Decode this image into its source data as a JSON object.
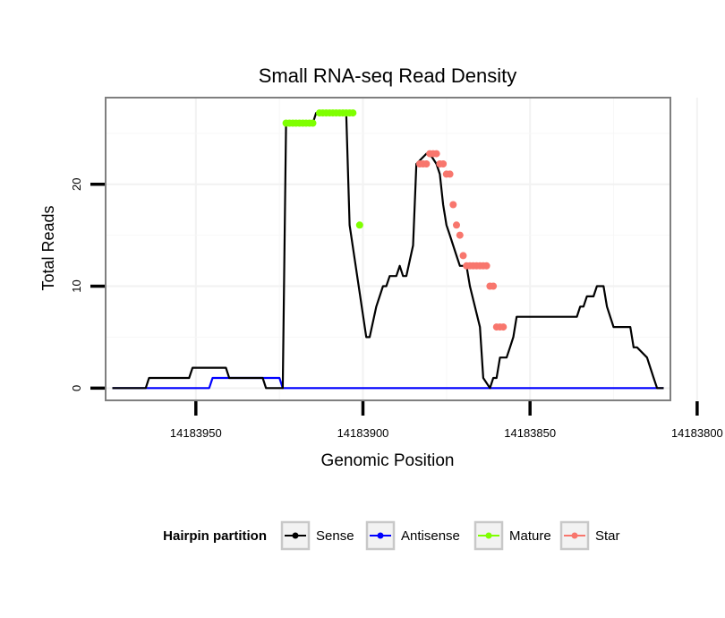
{
  "chart_data": {
    "type": "line",
    "title": "Small RNA-seq Read Density",
    "xlabel": "Genomic Position",
    "ylabel": "Total Reads",
    "x_reversed": true,
    "xlim": [
      14183977,
      14183808
    ],
    "ylim": [
      -1.2,
      28.5
    ],
    "x_ticks": [
      14183950,
      14183900,
      14183850,
      14183800
    ],
    "x_tick_labels": [
      "14183950",
      "14183900",
      "14183850",
      "14183800"
    ],
    "y_ticks": [
      0,
      10,
      20
    ],
    "y_tick_labels": [
      "0",
      "10",
      "20"
    ],
    "grid": true,
    "legend": {
      "title": "Hairpin partition",
      "position": "bottom",
      "entries": [
        {
          "name": "Sense",
          "color": "#000000"
        },
        {
          "name": "Antisense",
          "color": "#0000ff"
        },
        {
          "name": "Mature",
          "color": "#7fff00"
        },
        {
          "name": "Star",
          "color": "#f8766d"
        }
      ]
    },
    "series": [
      {
        "name": "Sense",
        "color": "#000000",
        "x": [
          14183975,
          14183965,
          14183964,
          14183952,
          14183951,
          14183941,
          14183940,
          14183930,
          14183929,
          14183924,
          14183923,
          14183915,
          14183914,
          14183905,
          14183904,
          14183899,
          14183898,
          14183896,
          14183894,
          14183893,
          14183892,
          14183890,
          14183889,
          14183888,
          14183887,
          14183885,
          14183884,
          14183881,
          14183880,
          14183878,
          14183877,
          14183876,
          14183875,
          14183874,
          14183872,
          14183871,
          14183869,
          14183868,
          14183865,
          14183864,
          14183862,
          14183861,
          14183860,
          14183859,
          14183857,
          14183856,
          14183855,
          14183854,
          14183852,
          14183851,
          14183850,
          14183849,
          14183848,
          14183847,
          14183846,
          14183836,
          14183835,
          14183834,
          14183833,
          14183831,
          14183830,
          14183828,
          14183827,
          14183825,
          14183824,
          14183820,
          14183819,
          14183818,
          14183815,
          14183814,
          14183813,
          14183812,
          14183810
        ],
        "values": [
          0,
          0,
          1,
          1,
          2,
          2,
          1,
          1,
          0,
          0,
          26,
          26,
          27,
          27,
          16,
          5,
          5,
          8,
          10,
          10,
          11,
          11,
          12,
          11,
          11,
          14,
          22,
          23,
          23,
          22,
          21,
          18,
          16,
          15,
          13,
          12,
          12,
          10,
          6,
          1,
          0,
          1,
          1,
          3,
          3,
          4,
          5,
          7,
          7,
          7,
          7,
          7,
          7,
          7,
          7,
          7,
          8,
          8,
          9,
          9,
          10,
          10,
          8,
          6,
          6,
          6,
          4,
          4,
          3,
          2,
          1,
          0,
          0
        ]
      },
      {
        "name": "Antisense",
        "color": "#0000ff",
        "x": [
          14183975,
          14183946,
          14183945,
          14183925,
          14183924,
          14183810
        ],
        "values": [
          0,
          0,
          1,
          1,
          0,
          0
        ]
      },
      {
        "name": "Mature",
        "color": "#7fff00",
        "x": [
          14183923,
          14183922,
          14183921,
          14183920,
          14183919,
          14183918,
          14183917,
          14183916,
          14183915,
          14183913,
          14183912,
          14183911,
          14183910,
          14183909,
          14183908,
          14183907,
          14183906,
          14183905,
          14183904,
          14183903,
          14183901
        ],
        "values": [
          26,
          26,
          26,
          26,
          26,
          26,
          26,
          26,
          26,
          27,
          27,
          27,
          27,
          27,
          27,
          27,
          27,
          27,
          27,
          27,
          16
        ]
      },
      {
        "name": "Star",
        "color": "#f8766d",
        "x": [
          14183883,
          14183882,
          14183881,
          14183880,
          14183879,
          14183878,
          14183877,
          14183876,
          14183875,
          14183874,
          14183873,
          14183872,
          14183871,
          14183870,
          14183869,
          14183868,
          14183867,
          14183866,
          14183865,
          14183864,
          14183863,
          14183862,
          14183861,
          14183860,
          14183859,
          14183858
        ],
        "values": [
          22,
          22,
          22,
          23,
          23,
          23,
          22,
          22,
          21,
          21,
          18,
          16,
          15,
          13,
          12,
          12,
          12,
          12,
          12,
          12,
          12,
          10,
          10,
          6,
          6,
          6
        ]
      }
    ]
  }
}
